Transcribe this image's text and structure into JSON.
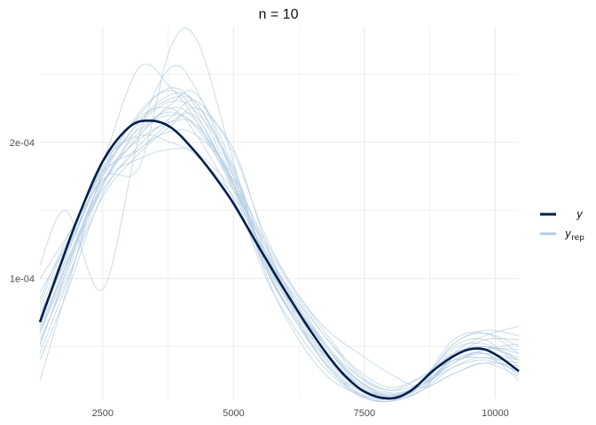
{
  "chart_data": {
    "type": "line",
    "title": "n = 10",
    "xlabel": "",
    "ylabel": "",
    "xlim": [
      1300,
      10450
    ],
    "ylim": [
      1.2e-05,
      0.000285
    ],
    "x_ticks": [
      2500,
      5000,
      7500,
      10000
    ],
    "x_tick_labels": [
      "2500",
      "5000",
      "7500",
      "10000"
    ],
    "y_ticks": [
      0.0001,
      0.0002
    ],
    "y_tick_labels": [
      "1e-04",
      "2e-04"
    ],
    "grid": true,
    "legend_position": "right",
    "colors": {
      "y": "#011f4b",
      "y_rep": "#b3cde0",
      "grid": "#ebebeb"
    },
    "series": [
      {
        "name": "y",
        "x": [
          1300,
          1600,
          2000,
          2500,
          3000,
          3400,
          3800,
          4200,
          4600,
          5000,
          5500,
          6000,
          6500,
          7000,
          7500,
          8000,
          8400,
          8800,
          9200,
          9500,
          9800,
          10100,
          10450
        ],
        "values": [
          6.8e-05,
          0.0001,
          0.000142,
          0.000186,
          0.000211,
          0.000216,
          0.000211,
          0.000196,
          0.000177,
          0.000155,
          0.000122,
          9e-05,
          6e-05,
          3.4e-05,
          1.7e-05,
          1.2e-05,
          1.8e-05,
          3.2e-05,
          4.3e-05,
          4.8e-05,
          4.8e-05,
          4.2e-05,
          3.2e-05
        ]
      }
    ],
    "replicates": [
      {
        "x": [
          1300,
          1800,
          2500,
          3200,
          3800,
          4300,
          5000,
          5600,
          6200,
          6800,
          7400,
          8000,
          8600,
          9200,
          9800,
          10450
        ],
        "values": [
          5e-05,
          0.000105,
          0.000175,
          0.000215,
          0.000235,
          0.000228,
          0.000175,
          0.000112,
          7.5e-05,
          4e-05,
          2e-05,
          1.3e-05,
          2e-05,
          4e-05,
          4.5e-05,
          2.5e-05
        ]
      },
      {
        "x": [
          1300,
          1800,
          2500,
          3200,
          3800,
          4300,
          5000,
          5600,
          6200,
          6800,
          7400,
          8000,
          8600,
          9200,
          9800,
          10450
        ],
        "values": [
          9e-05,
          0.000125,
          0.000185,
          0.000205,
          0.0002,
          0.00019,
          0.00016,
          0.00012,
          8.5e-05,
          5e-05,
          2.8e-05,
          1.8e-05,
          2.8e-05,
          4.5e-05,
          5e-05,
          4e-05
        ]
      },
      {
        "x": [
          1300,
          1800,
          2500,
          3200,
          3800,
          4300,
          5000,
          5600,
          6200,
          6800,
          7400,
          8000,
          8600,
          9200,
          9800,
          10450
        ],
        "values": [
          6.5e-05,
          0.00011,
          0.00017,
          0.000205,
          0.000225,
          0.000215,
          0.00017,
          0.000115,
          7.5e-05,
          4.5e-05,
          2e-05,
          1.2e-05,
          2.5e-05,
          5.5e-05,
          6e-05,
          4.5e-05
        ]
      },
      {
        "x": [
          1300,
          1800,
          2500,
          3200,
          3800,
          4300,
          5000,
          5600,
          6200,
          6800,
          7400,
          8000,
          8600,
          9200,
          9800,
          10450
        ],
        "values": [
          2.5e-05,
          9e-05,
          0.000178,
          0.00022,
          0.00024,
          0.000225,
          0.00017,
          0.000108,
          6.8e-05,
          3.8e-05,
          1.5e-05,
          1e-05,
          1.8e-05,
          3.5e-05,
          4.2e-05,
          3e-05
        ]
      },
      {
        "x": [
          1300,
          1800,
          2500,
          3200,
          3800,
          4300,
          5000,
          5600,
          6200,
          6800,
          7400,
          8000,
          8600,
          9200,
          9800,
          10450
        ],
        "values": [
          7.5e-05,
          0.000112,
          0.000165,
          0.000195,
          0.000208,
          0.000205,
          0.000175,
          0.000125,
          8e-05,
          4.8e-05,
          2.5e-05,
          1.5e-05,
          2.2e-05,
          3.8e-05,
          4.8e-05,
          4.8e-05
        ]
      },
      {
        "x": [
          1300,
          1800,
          2500,
          3200,
          3800,
          4300,
          5000,
          5600,
          6200,
          6800,
          7400,
          8000,
          8600,
          9200,
          9800,
          10450
        ],
        "values": [
          0.00011,
          0.00015,
          9.2e-05,
          0.000205,
          0.000255,
          0.000238,
          0.000175,
          0.000115,
          7.8e-05,
          4.8e-05,
          2.2e-05,
          1.4e-05,
          2e-05,
          4.2e-05,
          5.5e-05,
          5.5e-05
        ]
      },
      {
        "x": [
          1300,
          1800,
          2500,
          3200,
          3800,
          4300,
          5000,
          5600,
          6200,
          6800,
          7400,
          8000,
          8600,
          9200,
          9800,
          10450
        ],
        "values": [
          8.5e-05,
          0.000128,
          0.000178,
          0.000195,
          0.000215,
          0.000218,
          0.000168,
          0.00011,
          7e-05,
          4e-05,
          1.8e-05,
          1.2e-05,
          2.2e-05,
          4.8e-05,
          5.2e-05,
          4e-05
        ]
      },
      {
        "x": [
          1300,
          1800,
          2500,
          3200,
          3800,
          4300,
          5000,
          5600,
          6200,
          6800,
          7400,
          8000,
          8600,
          9200,
          9800,
          10450
        ],
        "values": [
          5.5e-05,
          9.8e-05,
          0.00016,
          0.000192,
          0.000212,
          0.000225,
          0.000195,
          0.000128,
          7.2e-05,
          3.5e-05,
          1.6e-05,
          1.2e-05,
          2.5e-05,
          5e-05,
          5.5e-05,
          3.5e-05
        ]
      },
      {
        "x": [
          1300,
          1800,
          2500,
          3200,
          3800,
          4300,
          5000,
          5600,
          6200,
          6800,
          7400,
          8000,
          8600,
          9200,
          9800,
          10450
        ],
        "values": [
          7e-05,
          0.000115,
          0.000185,
          0.000255,
          0.00024,
          0.000215,
          0.000165,
          0.000118,
          8.2e-05,
          4.8e-05,
          2.2e-05,
          1.4e-05,
          2.4e-05,
          4.5e-05,
          5e-05,
          4.2e-05
        ]
      },
      {
        "x": [
          1300,
          1800,
          2500,
          3200,
          3800,
          4300,
          5000,
          5600,
          6200,
          6800,
          7400,
          8000,
          8600,
          9200,
          9800,
          10450
        ],
        "values": [
          6e-05,
          0.000105,
          0.000172,
          0.000182,
          0.00027,
          0.000275,
          0.000185,
          0.000112,
          6.8e-05,
          3.6e-05,
          1.8e-05,
          1.3e-05,
          2.2e-05,
          4e-05,
          4.5e-05,
          3e-05
        ]
      },
      {
        "x": [
          1300,
          1800,
          2500,
          3200,
          3800,
          4300,
          5000,
          5600,
          6200,
          6800,
          7400,
          8000,
          8600,
          9200,
          9800,
          10450
        ],
        "values": [
          0.0001,
          0.00013,
          0.000172,
          0.000188,
          0.000195,
          0.000192,
          0.000165,
          0.000125,
          8.8e-05,
          5.5e-05,
          3.2e-05,
          2e-05,
          2.8e-05,
          4e-05,
          4.2e-05,
          3.8e-05
        ]
      },
      {
        "x": [
          1300,
          1800,
          2500,
          3200,
          3800,
          4300,
          5000,
          5600,
          6200,
          6800,
          7400,
          8000,
          8600,
          9200,
          9800,
          10450
        ],
        "values": [
          6e-05,
          0.000108,
          0.000168,
          0.000212,
          0.00023,
          0.000222,
          0.00018,
          0.000105,
          5.8e-05,
          2.8e-05,
          1.5e-05,
          1.1e-05,
          2e-05,
          3.8e-05,
          4.5e-05,
          4e-05
        ]
      },
      {
        "x": [
          1300,
          1800,
          2500,
          3200,
          3800,
          4300,
          5000,
          5600,
          6200,
          6800,
          7400,
          8000,
          8600,
          9200,
          9800,
          10450
        ],
        "values": [
          4.5e-05,
          9.5e-05,
          0.000168,
          0.000205,
          0.000228,
          0.000235,
          0.000182,
          0.00012,
          8.5e-05,
          5.5e-05,
          2.8e-05,
          1.6e-05,
          2.2e-05,
          3.5e-05,
          4e-05,
          3.2e-05
        ]
      },
      {
        "x": [
          1300,
          1800,
          2500,
          3200,
          3800,
          4300,
          5000,
          5600,
          6200,
          6800,
          7400,
          8000,
          8600,
          9200,
          9800,
          10450
        ],
        "values": [
          7.8e-05,
          0.00012,
          0.000175,
          0.000202,
          0.000215,
          0.000212,
          0.00017,
          0.000122,
          8.2e-05,
          5e-05,
          2.5e-05,
          1.4e-05,
          2.5e-05,
          5.2e-05,
          6.2e-05,
          5.8e-05
        ]
      },
      {
        "x": [
          1300,
          1800,
          2500,
          3200,
          3800,
          4300,
          5000,
          5600,
          6200,
          6800,
          7400,
          8000,
          8600,
          9200,
          9800,
          10450
        ],
        "values": [
          5.2e-05,
          0.000102,
          0.00017,
          0.000208,
          0.00022,
          0.000212,
          0.000172,
          0.000128,
          9e-05,
          5.8e-05,
          3e-05,
          1.8e-05,
          2.4e-05,
          3.8e-05,
          4.8e-05,
          5.2e-05
        ]
      },
      {
        "x": [
          1300,
          1800,
          2500,
          3200,
          3800,
          4300,
          5000,
          5600,
          6200,
          6800,
          7400,
          8000,
          8600,
          9200,
          9800,
          10450
        ],
        "values": [
          8.2e-05,
          0.000125,
          0.000182,
          0.000218,
          0.000225,
          0.000205,
          0.000158,
          0.000108,
          6.8e-05,
          3.5e-05,
          1.4e-05,
          1e-05,
          1.8e-05,
          3e-05,
          3.8e-05,
          3.6e-05
        ]
      },
      {
        "x": [
          1300,
          1800,
          2500,
          3200,
          3800,
          4300,
          5000,
          5600,
          6200,
          6800,
          7400,
          8000,
          8600,
          9200,
          9800,
          10450
        ],
        "values": [
          6.8e-05,
          0.000115,
          0.000178,
          0.000215,
          0.000232,
          0.000228,
          0.000178,
          0.000115,
          7.2e-05,
          4.2e-05,
          2.2e-05,
          1.2e-05,
          1.8e-05,
          4.5e-05,
          5.8e-05,
          6.5e-05
        ]
      },
      {
        "x": [
          1300,
          1800,
          2500,
          3200,
          3800,
          4300,
          5000,
          5600,
          6200,
          6800,
          7400,
          8000,
          8600,
          9200,
          9800,
          10450
        ],
        "values": [
          4e-05,
          8.8e-05,
          0.000162,
          0.000198,
          0.000218,
          0.00023,
          0.000192,
          0.000132,
          9e-05,
          6.2e-05,
          4.5e-05,
          3e-05,
          2e-05,
          3e-05,
          3.8e-05,
          2.8e-05
        ]
      },
      {
        "x": [
          1300,
          1800,
          2500,
          3200,
          3800,
          4300,
          5000,
          5600,
          6200,
          6800,
          7400,
          8000,
          8600,
          9200,
          9800,
          10450
        ],
        "values": [
          6.2e-05,
          0.00011,
          0.000175,
          0.000222,
          0.000238,
          0.00022,
          0.000165,
          0.000102,
          6.2e-05,
          3.2e-05,
          1.4e-05,
          1e-05,
          2.4e-05,
          5.2e-05,
          6e-05,
          5e-05
        ]
      },
      {
        "x": [
          1300,
          1800,
          2500,
          3200,
          3800,
          4300,
          5000,
          5600,
          6200,
          6800,
          7400,
          8000,
          8600,
          9200,
          9800,
          10450
        ],
        "values": [
          7.2e-05,
          0.000118,
          0.00018,
          0.00021,
          0.000222,
          0.00021,
          0.000168,
          0.000118,
          8e-05,
          4.8e-05,
          2.4e-05,
          1.4e-05,
          2.2e-05,
          4.2e-05,
          5e-05,
          4.5e-05
        ]
      }
    ]
  },
  "legend": {
    "items": [
      {
        "base": "y",
        "sub": ""
      },
      {
        "base": "y",
        "sub": "rep"
      }
    ]
  }
}
